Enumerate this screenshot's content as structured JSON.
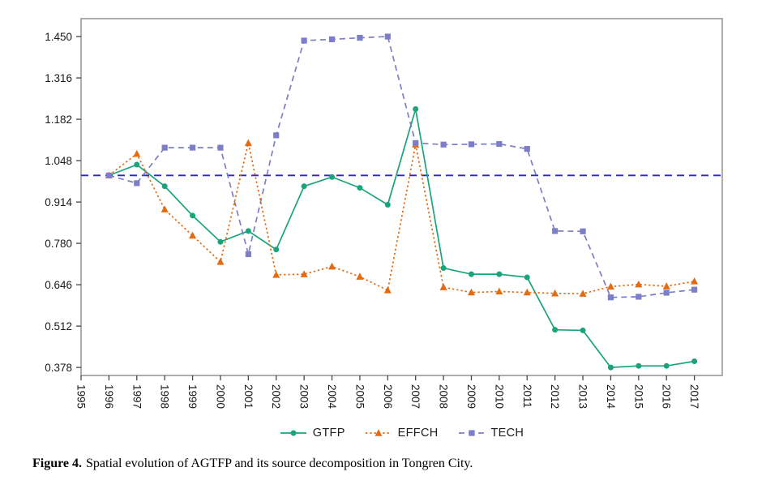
{
  "figure_caption": {
    "label": "Figure 4.",
    "text": "Spatial evolution of AGTFP and its source decomposition in Tongren City."
  },
  "chart_data": {
    "type": "line",
    "title": "",
    "xlabel": "",
    "ylabel": "",
    "grid": false,
    "legend_position": "bottom-center",
    "axis_range": {
      "x": [
        1995,
        2018
      ],
      "y": [
        0.352,
        1.508
      ]
    },
    "x_tick_labels": [
      "1995",
      "1996",
      "1997",
      "1998",
      "1999",
      "2000",
      "2001",
      "2002",
      "2003",
      "2004",
      "2005",
      "2006",
      "2007",
      "2008",
      "2009",
      "2010",
      "2011",
      "2012",
      "2013",
      "2014",
      "2015",
      "2016",
      "2017"
    ],
    "y_tick_labels": [
      "0.378",
      "0.512",
      "0.646",
      "0.780",
      "0.914",
      "1.048",
      "1.182",
      "1.316",
      "1.450"
    ],
    "x": [
      1996,
      1997,
      1998,
      1999,
      2000,
      2001,
      2002,
      2003,
      2004,
      2005,
      2006,
      2007,
      2008,
      2009,
      2010,
      2011,
      2012,
      2013,
      2014,
      2015,
      2016,
      2017
    ],
    "series": [
      {
        "name": "GTFP",
        "color": "#1aa47b",
        "line_style": "solid",
        "marker": "circle",
        "values": [
          1.0,
          1.035,
          0.965,
          0.87,
          0.785,
          0.82,
          0.76,
          0.965,
          0.995,
          0.96,
          0.905,
          1.215,
          0.7,
          0.68,
          0.68,
          0.67,
          0.5,
          0.498,
          0.378,
          0.383,
          0.383,
          0.398
        ]
      },
      {
        "name": "EFFCH",
        "color": "#e56a10",
        "line_style": "dotted",
        "marker": "triangle",
        "values": [
          1.0,
          1.07,
          0.89,
          0.805,
          0.72,
          1.105,
          0.678,
          0.68,
          0.705,
          0.672,
          0.628,
          1.1,
          0.638,
          0.621,
          0.624,
          0.621,
          0.618,
          0.617,
          0.64,
          0.647,
          0.641,
          0.657
        ]
      },
      {
        "name": "TECH",
        "color": "#7d7ec8",
        "line_style": "dashed",
        "marker": "square",
        "values": [
          1.0,
          0.975,
          1.09,
          1.09,
          1.09,
          0.745,
          1.13,
          1.437,
          1.441,
          1.446,
          1.45,
          1.105,
          1.1,
          1.101,
          1.102,
          1.086,
          0.82,
          0.819,
          0.605,
          0.607,
          0.62,
          0.63
        ]
      }
    ],
    "reference_line": {
      "value": 1.0,
      "color": "#2525dd",
      "style": "dashed"
    }
  }
}
